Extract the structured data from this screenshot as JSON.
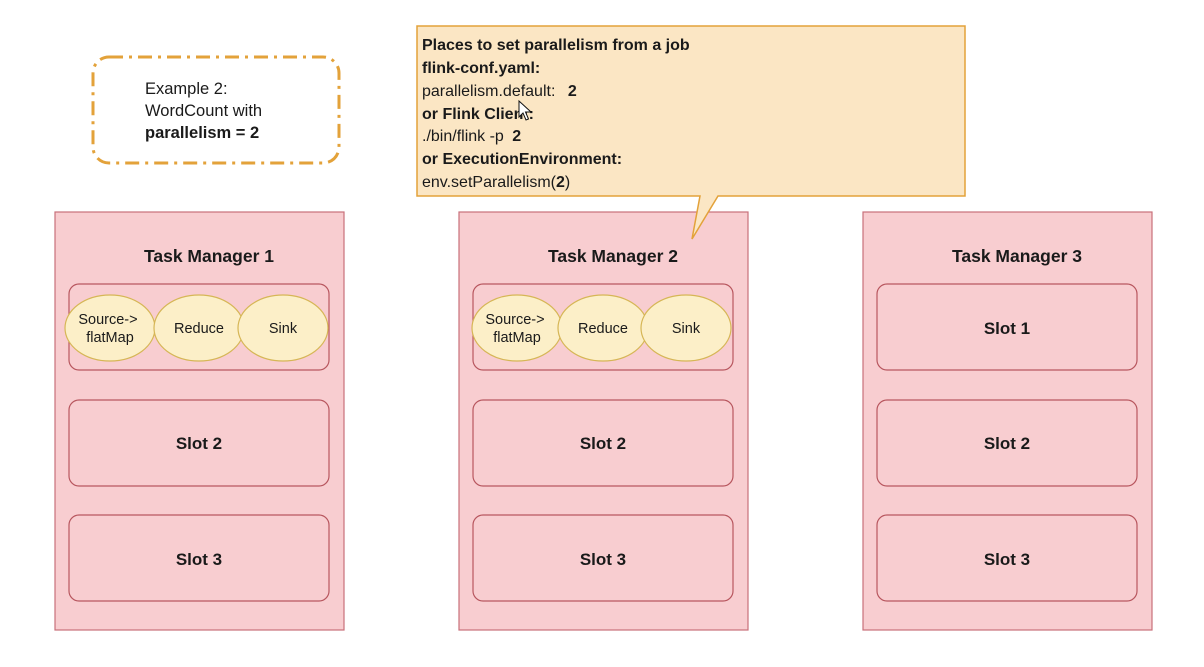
{
  "example_note": {
    "line1": "Example 2:",
    "line2": "WordCount with",
    "line3": "parallelism = 2",
    "border_color": "#e3a23a"
  },
  "callout": {
    "title": "Places to set parallelism from a job",
    "conf_file": "flink-conf.yaml:",
    "conf_key": "parallelism.default:",
    "conf_value": "2",
    "client_label": "or Flink Client:",
    "client_cmd": "./bin/flink -p",
    "client_value": "2",
    "env_label": "or ExecutionEnvironment:",
    "env_call_prefix": "env.setParallelism(",
    "env_value": "2",
    "env_call_suffix": ")",
    "fill_color": "#fbe6c4",
    "border_color": "#e3a23a"
  },
  "task_managers": [
    {
      "title": "Task Manager 1",
      "pipeline": [
        "Source->\nflatMap",
        "Reduce",
        "Sink"
      ],
      "slots": [
        "Slot 2",
        "Slot 3"
      ]
    },
    {
      "title": "Task Manager 2",
      "pipeline": [
        "Source->\nflatMap",
        "Reduce",
        "Sink"
      ],
      "slots": [
        "Slot 2",
        "Slot 3"
      ]
    },
    {
      "title": "Task Manager 3",
      "pipeline": [],
      "slots": [
        "Slot 1",
        "Slot 2",
        "Slot 3"
      ]
    }
  ],
  "colors": {
    "tm_fill": "#f8cdd0",
    "tm_border": "#c8707a",
    "slot_fill": "#f8cdd0",
    "slot_border": "#b8575f",
    "op_fill": "#fcefc8",
    "op_border": "#d6b656"
  }
}
